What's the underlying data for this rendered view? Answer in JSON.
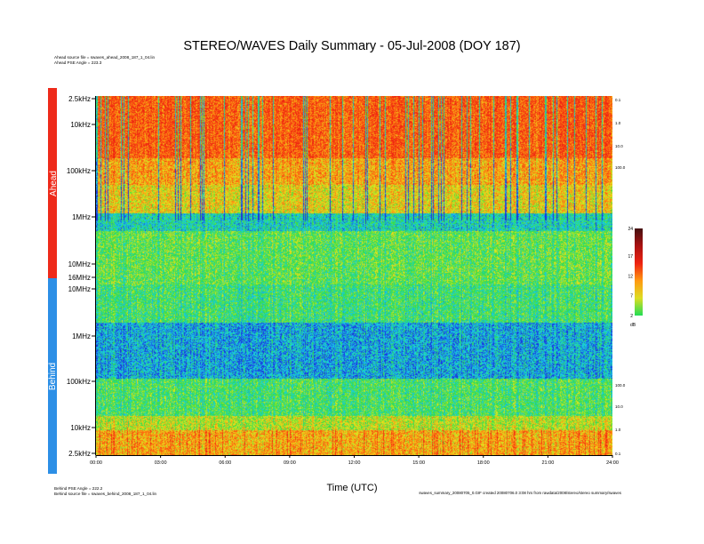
{
  "header": {
    "title": "STEREO/WAVES Daily Summary - 05-Jul-2008 (DOY 187)",
    "ahead_source": "Ahead source file = swaves_ahead_2008_187_1_04.lin",
    "ahead_angle": "Ahead PSE Angle = 223.3"
  },
  "footer": {
    "behind_angle": "Behind PSE Angle = 222.2",
    "behind_source": "Behind source file = swaves_behind_2008_187_1_04.lin",
    "file_info": "swaves_summary_20080705_0.GIF created 20080706.0 3:08 hrs from rawdata/2008/stereo/stereo summary/swaves"
  },
  "bands": {
    "ahead": "Ahead",
    "behind": "Behind"
  },
  "chart_data": {
    "type": "heatmap",
    "title": "STEREO/WAVES Daily Summary - 05-Jul-2008 (DOY 187)",
    "xlabel": "Time (UTC)",
    "x_ticks": [
      "00:00",
      "03:00",
      "06:00",
      "09:00",
      "12:00",
      "15:00",
      "18:00",
      "21:00",
      "24:00"
    ],
    "x_range_hours": [
      0,
      24
    ],
    "freq_ticks_ahead": [
      "2.5kHz",
      "10kHz",
      "100kHz",
      "1MHz",
      "10MHz",
      "16MHz"
    ],
    "freq_ticks_behind": [
      "10MHz",
      "1MHz",
      "100kHz",
      "10kHz",
      "2.5kHz"
    ],
    "angle_ticks_ahead": [
      "0.1",
      "1.0",
      "10.0",
      "100.0"
    ],
    "angle_ticks_behind": [
      "100.0",
      "10.0",
      "1.0",
      "0.1"
    ],
    "colorbar": {
      "label": "dB",
      "ticks": [
        "2",
        "7",
        "12",
        "17",
        "24"
      ],
      "range": [
        2,
        24
      ],
      "colors": [
        "#22dd55",
        "#dddd22",
        "#ff9911",
        "#ee2211",
        "#aa1111",
        "#441111"
      ]
    },
    "spectrogram_colors": {
      "low": "#1a2fe0",
      "mid_low": "#17d0e8",
      "mid": "#33dd44",
      "mid_high": "#e6e61c",
      "high": "#ff7a10",
      "max": "#ee2211"
    }
  }
}
